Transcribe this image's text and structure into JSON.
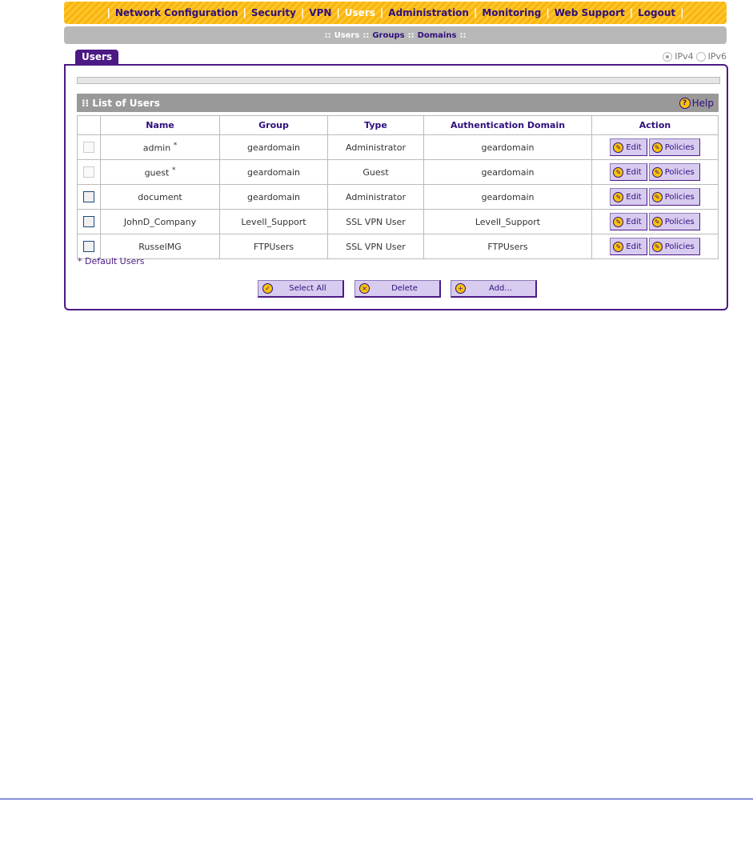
{
  "nav": {
    "items": [
      "Network Configuration",
      "Security",
      "VPN",
      "Users",
      "Administration",
      "Monitoring",
      "Web Support",
      "Logout"
    ],
    "active": "Users"
  },
  "subnav": {
    "items": [
      "Users",
      "Groups",
      "Domains"
    ],
    "active": "Users"
  },
  "tab": "Users",
  "ip": {
    "ipv4": "IPv4",
    "ipv6": "IPv6",
    "selected": "IPv4"
  },
  "list": {
    "title": "List of Users",
    "help": "Help",
    "columns": [
      "Name",
      "Group",
      "Type",
      "Authentication Domain",
      "Action"
    ],
    "rows": [
      {
        "name": "admin",
        "default": true,
        "group": "geardomain",
        "type": "Administrator",
        "domain": "geardomain"
      },
      {
        "name": "guest",
        "default": true,
        "group": "geardomain",
        "type": "Guest",
        "domain": "geardomain"
      },
      {
        "name": "document",
        "default": false,
        "group": "geardomain",
        "type": "Administrator",
        "domain": "geardomain"
      },
      {
        "name": "JohnD_Company",
        "default": false,
        "group": "LevelI_Support",
        "type": "SSL VPN User",
        "domain": "LevelI_Support"
      },
      {
        "name": "RusselMG",
        "default": false,
        "group": "FTPUsers",
        "type": "SSL VPN User",
        "domain": "FTPUsers"
      }
    ],
    "edit_label": "Edit",
    "policies_label": "Policies",
    "default_marker": "*"
  },
  "default_note": "* Default Users",
  "buttons": {
    "select_all": "Select All",
    "delete": "Delete",
    "add": "Add..."
  },
  "colors": {
    "accent": "#4b1a85",
    "nav": "#f9b40c"
  }
}
